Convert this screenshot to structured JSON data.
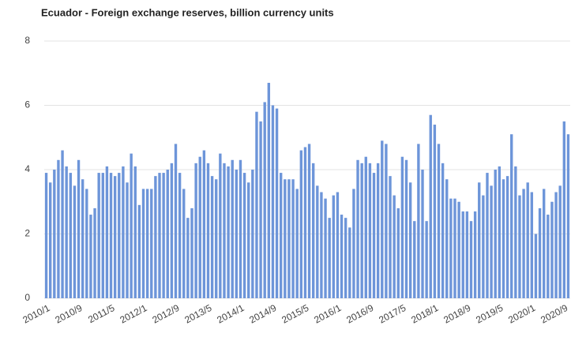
{
  "chart_data": {
    "type": "bar",
    "title": "Ecuador - Foreign exchange reserves, billion currency units",
    "categories": [
      "2010/1",
      null,
      null,
      null,
      null,
      null,
      null,
      null,
      "2010/9",
      null,
      null,
      null,
      null,
      null,
      null,
      null,
      "2011/5",
      null,
      null,
      null,
      null,
      null,
      null,
      null,
      "2012/1",
      null,
      null,
      null,
      null,
      null,
      null,
      null,
      "2012/9",
      null,
      null,
      null,
      null,
      null,
      null,
      null,
      "2013/5",
      null,
      null,
      null,
      null,
      null,
      null,
      null,
      "2014/1",
      null,
      null,
      null,
      null,
      null,
      null,
      null,
      "2014/9",
      null,
      null,
      null,
      null,
      null,
      null,
      null,
      "2015/5",
      null,
      null,
      null,
      null,
      null,
      null,
      null,
      "2016/1",
      null,
      null,
      null,
      null,
      null,
      null,
      null,
      "2016/9",
      null,
      null,
      null,
      null,
      null,
      null,
      null,
      "2017/5",
      null,
      null,
      null,
      null,
      null,
      null,
      null,
      "2018/1",
      null,
      null,
      null,
      null,
      null,
      null,
      null,
      "2018/9",
      null,
      null,
      null,
      null,
      null,
      null,
      null,
      "2019/5",
      null,
      null,
      null,
      null,
      null,
      null,
      null,
      "2020/1",
      null,
      null,
      null,
      null,
      null,
      null,
      null,
      "2020/9",
      null
    ],
    "values": [
      3.9,
      3.6,
      4.0,
      4.3,
      4.6,
      4.1,
      3.9,
      3.5,
      4.3,
      3.7,
      3.4,
      2.6,
      2.8,
      3.9,
      3.9,
      4.1,
      3.9,
      3.8,
      3.9,
      4.1,
      3.6,
      4.5,
      4.1,
      2.9,
      3.4,
      3.4,
      3.4,
      3.8,
      3.9,
      3.9,
      4.0,
      4.2,
      4.8,
      3.9,
      3.4,
      2.5,
      2.8,
      4.2,
      4.4,
      4.6,
      4.2,
      3.8,
      3.7,
      4.5,
      4.2,
      4.1,
      4.3,
      4.0,
      4.3,
      3.9,
      3.6,
      4.0,
      5.8,
      5.5,
      6.1,
      6.7,
      6.0,
      5.9,
      3.9,
      3.7,
      3.7,
      3.7,
      3.4,
      4.6,
      4.7,
      4.8,
      4.2,
      3.5,
      3.3,
      3.1,
      2.5,
      3.2,
      3.3,
      2.6,
      2.5,
      2.2,
      3.4,
      4.3,
      4.2,
      4.4,
      4.2,
      3.9,
      4.2,
      4.9,
      4.8,
      3.8,
      3.2,
      2.8,
      4.4,
      4.3,
      3.6,
      2.4,
      4.8,
      4.0,
      2.4,
      5.7,
      5.4,
      4.8,
      4.2,
      3.7,
      3.1,
      3.1,
      3.0,
      2.7,
      2.7,
      2.4,
      2.7,
      3.6,
      3.2,
      3.9,
      3.5,
      4.0,
      4.1,
      3.7,
      3.8,
      5.1,
      4.1,
      3.2,
      3.4,
      3.6,
      3.3,
      2.0,
      2.8,
      3.4,
      2.6,
      3.0,
      3.3,
      3.5,
      5.5,
      5.1
    ],
    "color": "#6d95d9",
    "ylim": [
      0,
      8
    ],
    "yticks": [
      0,
      2,
      4,
      6,
      8
    ],
    "grid": true
  }
}
